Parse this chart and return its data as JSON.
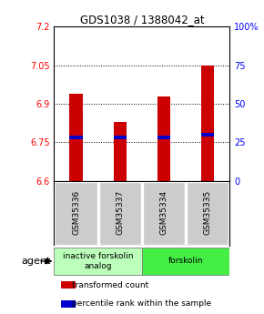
{
  "title": "GDS1038 / 1388042_at",
  "samples": [
    "GSM35336",
    "GSM35337",
    "GSM35334",
    "GSM35335"
  ],
  "bar_values": [
    6.94,
    6.83,
    6.93,
    7.05
  ],
  "percentile_values": [
    6.77,
    6.77,
    6.77,
    6.78
  ],
  "bar_color": "#cc0000",
  "percentile_color": "#0000cc",
  "ylim_left": [
    6.6,
    7.2
  ],
  "ylim_right": [
    0,
    100
  ],
  "yticks_left": [
    6.6,
    6.75,
    6.9,
    7.05,
    7.2
  ],
  "ytick_labels_left": [
    "6.6",
    "6.75",
    "6.9",
    "7.05",
    "7.2"
  ],
  "yticks_right": [
    0,
    25,
    50,
    75,
    100
  ],
  "ytick_labels_right": [
    "0",
    "25",
    "50",
    "75",
    "100%"
  ],
  "grid_values": [
    6.75,
    6.9,
    7.05
  ],
  "agent_groups": [
    {
      "label": "inactive forskolin\nanalog",
      "color": "#bbffbb",
      "span": [
        0,
        2
      ]
    },
    {
      "label": "forskolin",
      "color": "#44ee44",
      "span": [
        2,
        4
      ]
    }
  ],
  "legend_items": [
    {
      "color": "#cc0000",
      "label": "transformed count"
    },
    {
      "color": "#0000cc",
      "label": "percentile rank within the sample"
    }
  ],
  "bar_width": 0.3,
  "agent_label": "agent",
  "background_color": "#ffffff",
  "label_area_color": "#cccccc",
  "title_fontsize": 8.5
}
